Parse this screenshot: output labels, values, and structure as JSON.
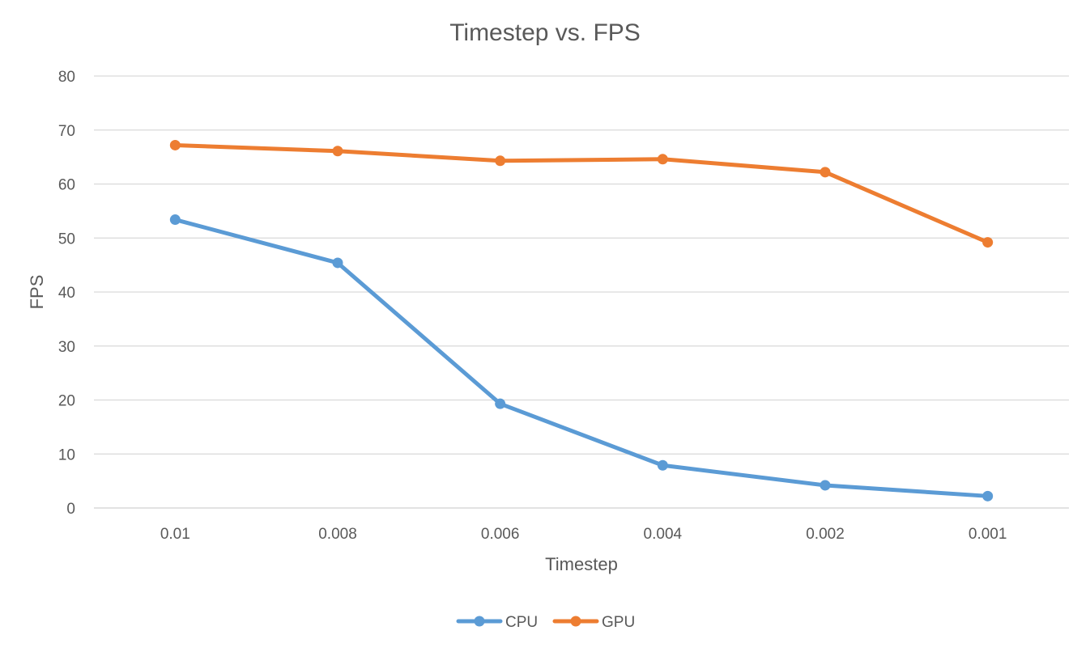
{
  "chart_data": {
    "type": "line",
    "title": "Timestep vs. FPS",
    "xlabel": "Timestep",
    "ylabel": "FPS",
    "categories": [
      "0.01",
      "0.008",
      "0.006",
      "0.004",
      "0.002",
      "0.001"
    ],
    "ylim": [
      0,
      80
    ],
    "yticks": [
      0,
      10,
      20,
      30,
      40,
      50,
      60,
      70,
      80
    ],
    "grid": true,
    "legend_position": "bottom",
    "series": [
      {
        "name": "CPU",
        "color": "#5b9bd5",
        "values": [
          53.4,
          45.4,
          19.3,
          7.9,
          4.2,
          2.2
        ]
      },
      {
        "name": "GPU",
        "color": "#ed7d31",
        "values": [
          67.2,
          66.1,
          64.3,
          64.6,
          62.2,
          49.2
        ]
      }
    ]
  }
}
